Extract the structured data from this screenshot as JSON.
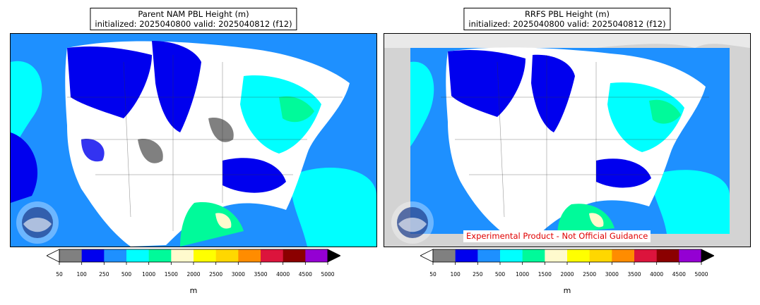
{
  "colors": {
    "bins": [
      "#808080",
      "#0000ee",
      "#1e90ff",
      "#00ffff",
      "#00fa9a",
      "#fffacd",
      "#ffff00",
      "#ffd700",
      "#ff8c00",
      "#dc143c",
      "#8b0000",
      "#9400d3"
    ],
    "under": "#ffffff",
    "over": "#000000",
    "nodata": "#d3d3d3",
    "disclaimer": "#e00000"
  },
  "legend": {
    "ticks": [
      "50",
      "100",
      "250",
      "500",
      "1000",
      "1500",
      "2000",
      "2500",
      "3000",
      "3500",
      "4000",
      "4500",
      "5000"
    ],
    "unit": "m"
  },
  "panels": [
    {
      "title_line1": "Parent NAM PBL Height (m)",
      "title_line2": "initialized: 2025040800 valid: 2025040812 (f12)",
      "logo": "noaa-logo",
      "disclaimer": ""
    },
    {
      "title_line1": "RRFS PBL Height (m)",
      "title_line2": "initialized: 2025040800 valid: 2025040812 (f12)",
      "logo": "noaa-logo",
      "disclaimer": "Experimental Product - Not Official Guidance"
    }
  ]
}
